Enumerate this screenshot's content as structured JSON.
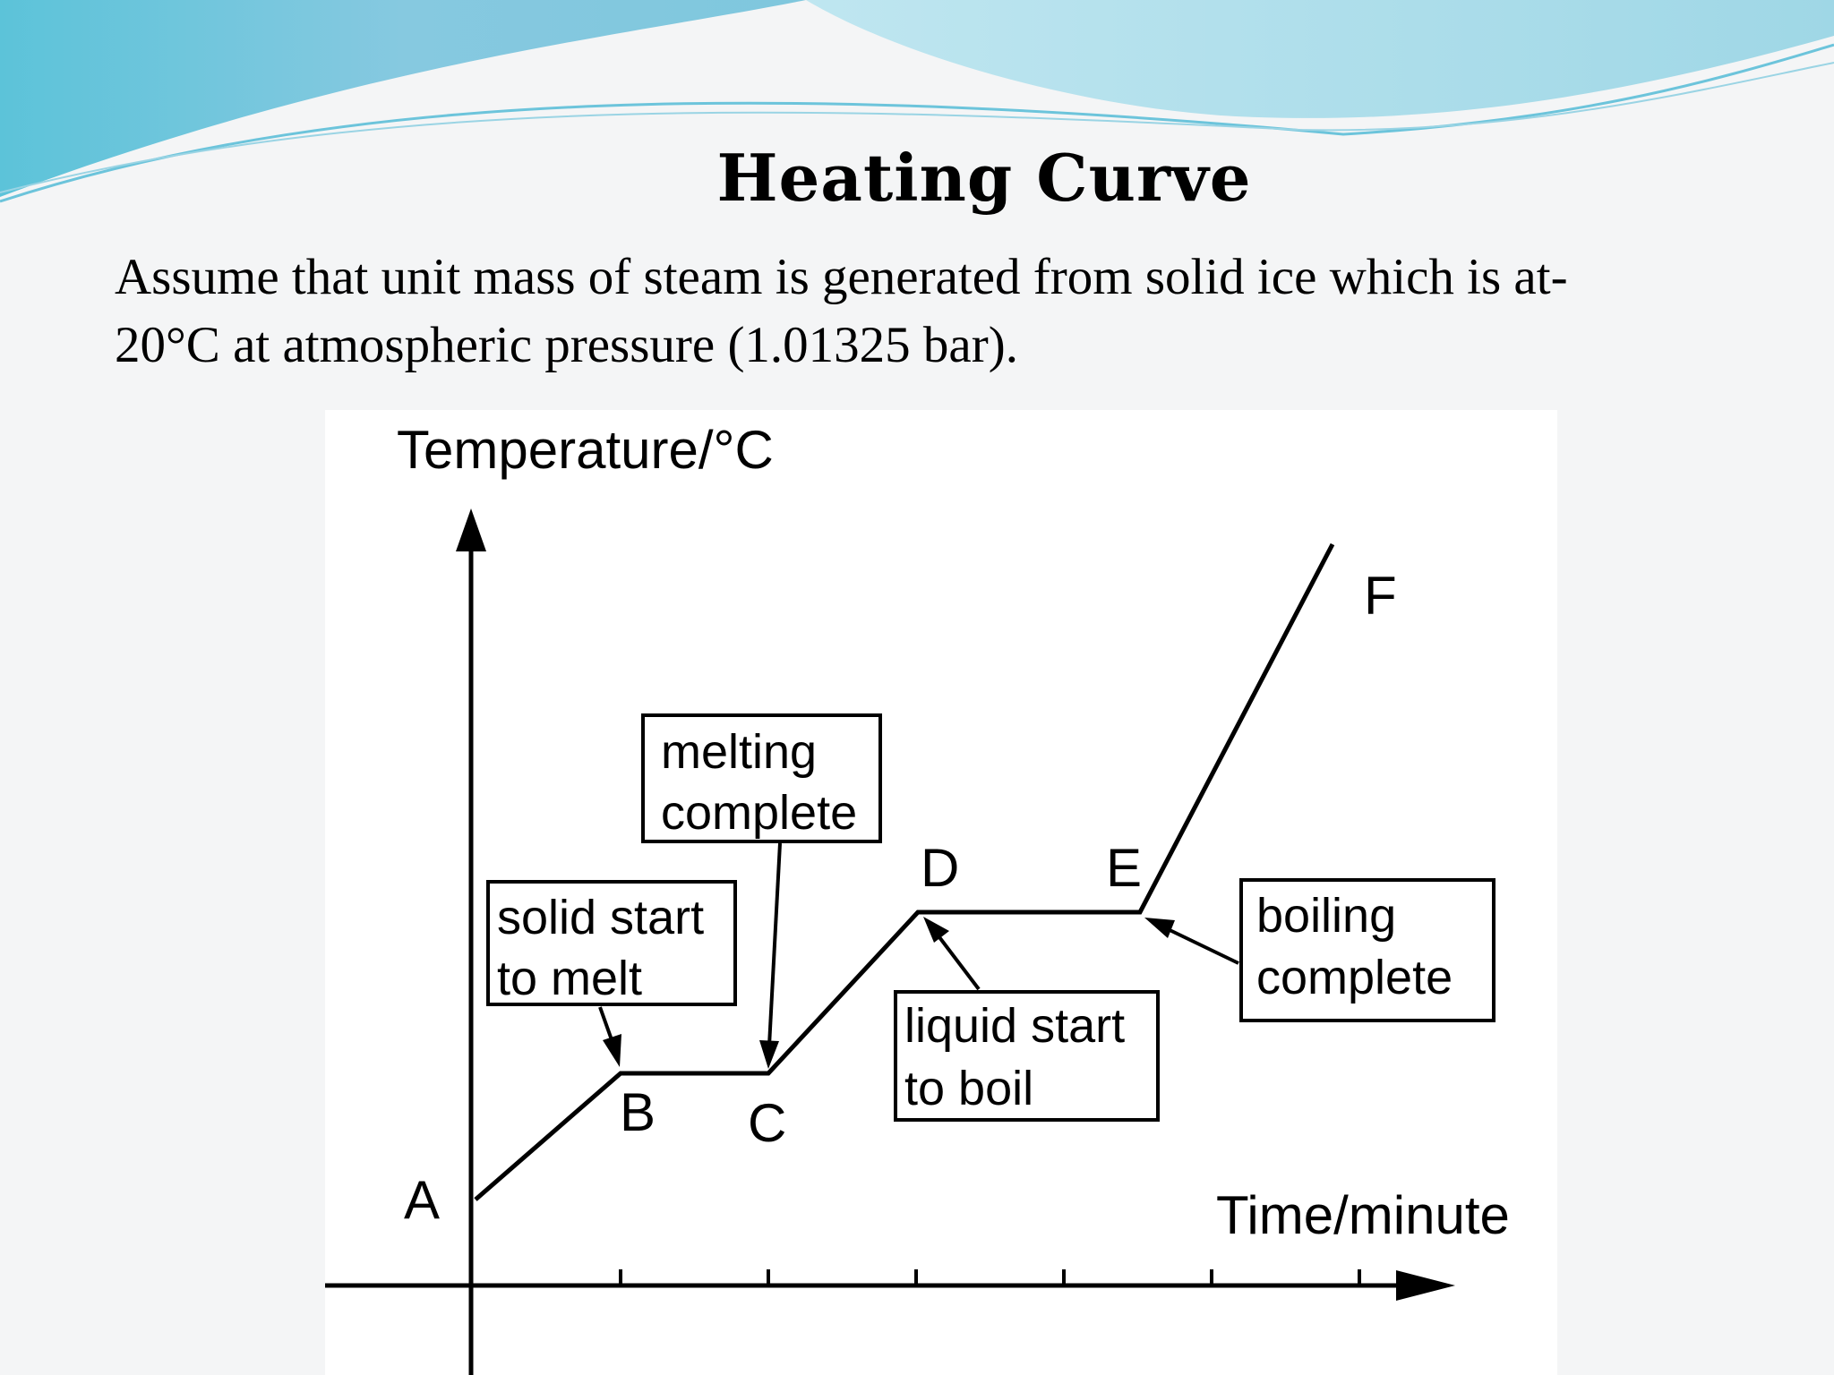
{
  "slide": {
    "title": "Heating Curve",
    "body_line1": "Assume that unit mass of steam is generated from solid ice which is at-",
    "body_line2": "20°C at atmospheric pressure (1.01325 bar)."
  },
  "diagram": {
    "y_axis_label": "Temperature/°C",
    "x_axis_label": "Time/minute",
    "points": [
      "A",
      "B",
      "C",
      "D",
      "E",
      "F"
    ],
    "annotations": {
      "solid_start": [
        "solid start",
        "to melt"
      ],
      "melting_complete": [
        "melting",
        "complete"
      ],
      "liquid_start": [
        "liquid start",
        "to boil"
      ],
      "boiling_complete": [
        "boiling",
        "complete"
      ]
    }
  },
  "colors": {
    "header_blue_dark": "#5fb8d6",
    "header_blue_light": "#a8dcea",
    "line": "#000000"
  }
}
